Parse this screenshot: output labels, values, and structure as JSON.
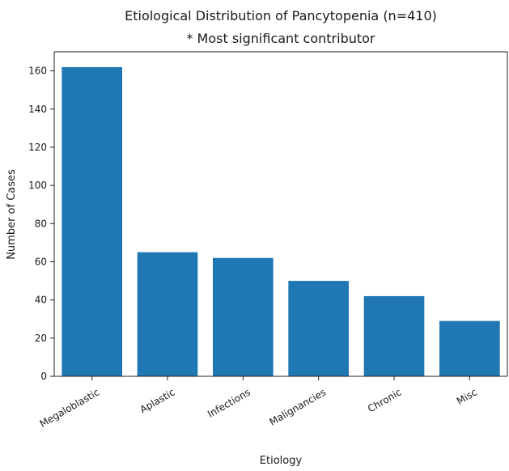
{
  "chart_data": {
    "type": "bar",
    "title": "Etiological Distribution of Pancytopenia (n=410)",
    "subtitle": "* Most significant contributor",
    "xlabel": "Etiology",
    "ylabel": "Number of Cases",
    "categories": [
      "Megaloblastic",
      "Aplastic",
      "Infections",
      "Malignancies",
      "Chronic",
      "Misc"
    ],
    "values": [
      162,
      65,
      62,
      50,
      42,
      29
    ],
    "ylim": [
      0,
      170
    ],
    "yticks": [
      "0",
      "20",
      "40",
      "60",
      "80",
      "100",
      "120",
      "140",
      "160"
    ],
    "bar_color": "#1f77b4",
    "grid": false,
    "legend": false
  }
}
